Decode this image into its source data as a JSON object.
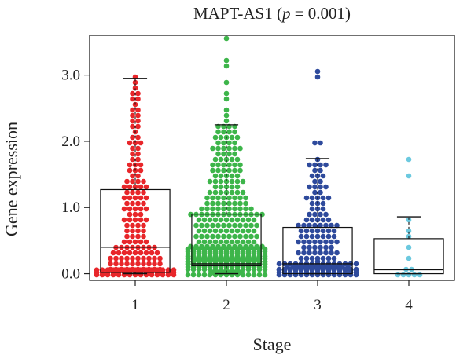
{
  "chart_data": {
    "type": "scatter",
    "subtype": "beeswarm-boxplot",
    "title": "MAPT-AS1 (p = 0.001)",
    "title_parts": [
      "MAPT-AS1 (",
      "p",
      " = 0.001)"
    ],
    "xlabel": "Stage",
    "ylabel": "Gene expression",
    "categories": [
      "1",
      "2",
      "3",
      "4"
    ],
    "ylim": [
      -0.1,
      3.6
    ],
    "yticks": [
      0.0,
      1.0,
      2.0,
      3.0
    ],
    "ytick_labels": [
      "0.0",
      "1.0",
      "2.0",
      "3.0"
    ],
    "grid": false,
    "legend": "none",
    "series": [
      {
        "category": "1",
        "color": "#e8262a",
        "n": 180,
        "box": {
          "min": 0.0,
          "q1": 0.02,
          "median": 0.4,
          "q3": 1.27,
          "max": 2.95
        },
        "outliers": []
      },
      {
        "category": "2",
        "color": "#3db54a",
        "n": 420,
        "box": {
          "min": 0.0,
          "q1": 0.12,
          "median": 0.15,
          "q3": 0.9,
          "max": 2.25
        },
        "outliers": [
          2.3,
          2.4,
          2.5,
          2.6,
          2.75,
          2.9,
          3.1,
          3.2,
          3.55
        ]
      },
      {
        "category": "3",
        "color": "#2e4a9c",
        "n": 190,
        "box": {
          "min": 0.0,
          "q1": 0.0,
          "median": 0.15,
          "q3": 0.7,
          "max": 1.74
        },
        "outliers": [
          2.0,
          2.0,
          2.93,
          3.05
        ]
      },
      {
        "category": "4",
        "color": "#6cc9df",
        "n": 14,
        "box": {
          "min": 0.0,
          "q1": 0.0,
          "median": 0.06,
          "q3": 0.53,
          "max": 0.86
        },
        "outliers": [
          1.45,
          1.7
        ]
      }
    ]
  }
}
